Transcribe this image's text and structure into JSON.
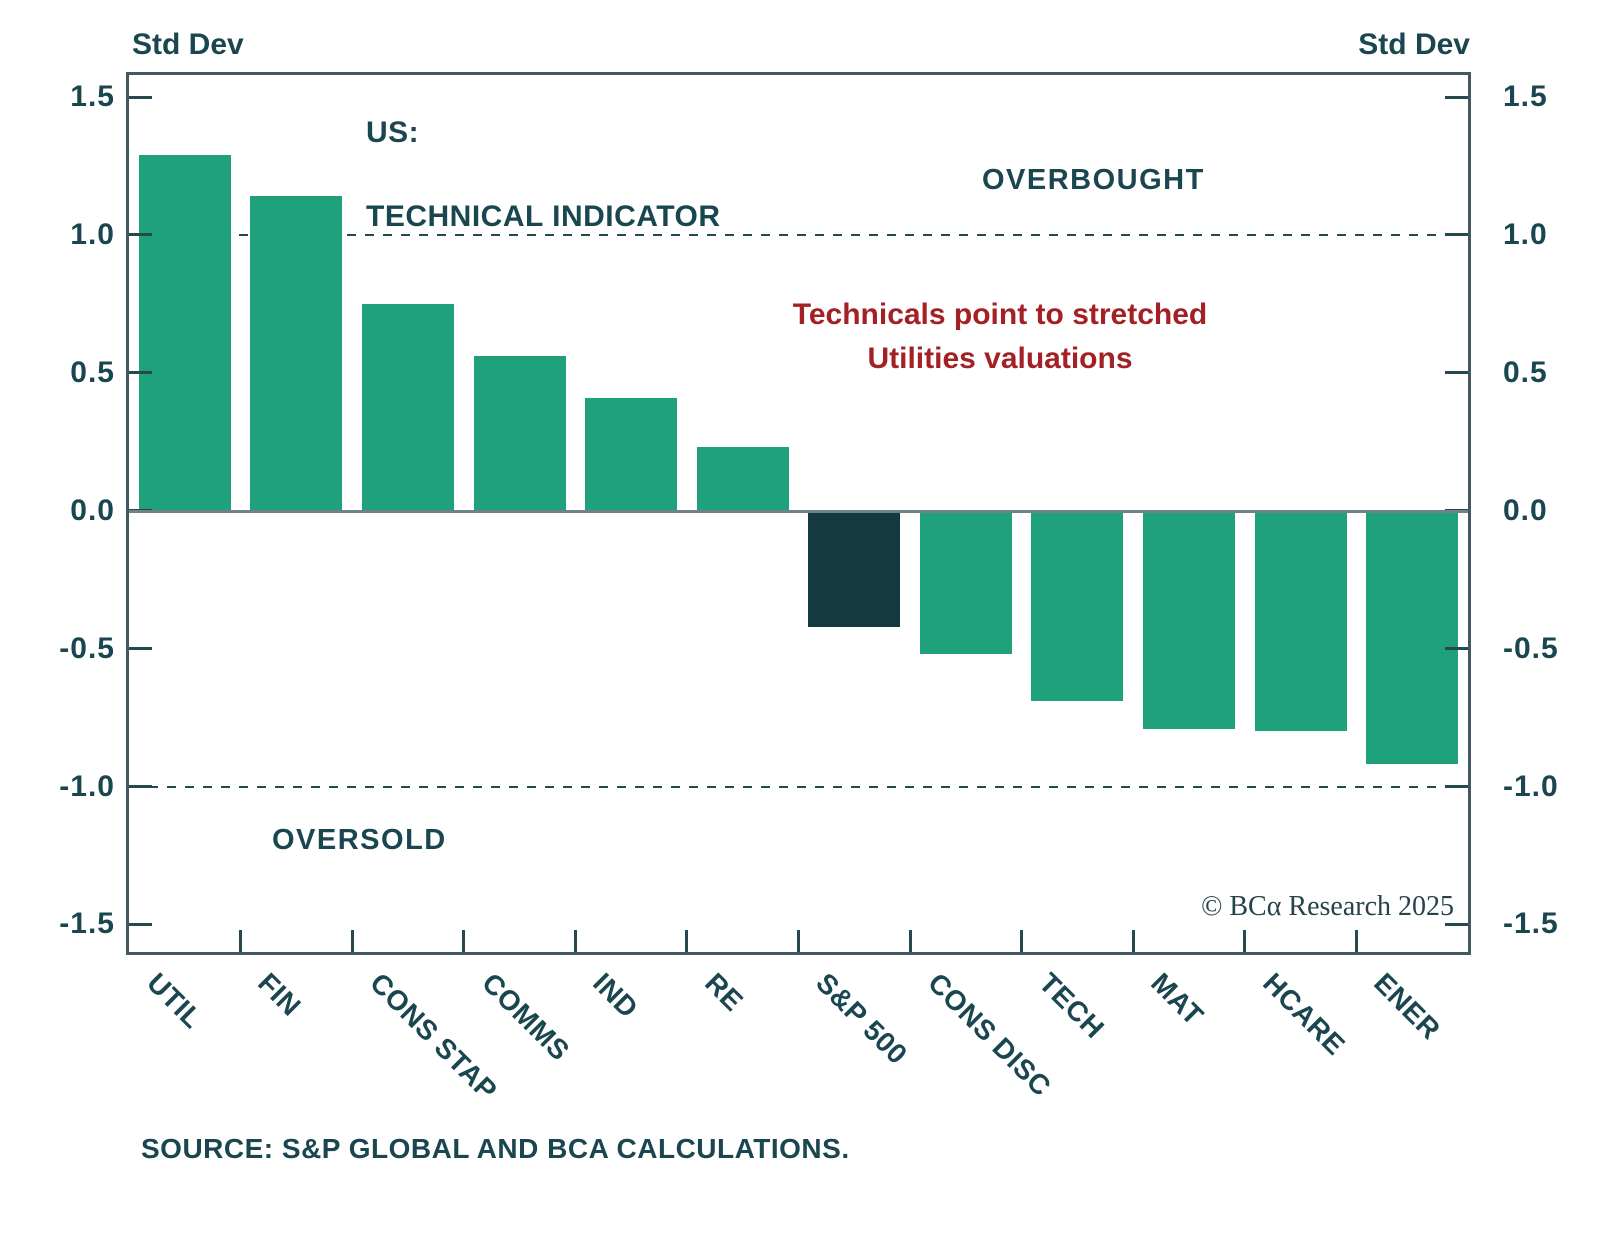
{
  "axis": {
    "left_unit_label": "Std Dev",
    "right_unit_label": "Std Dev"
  },
  "title": {
    "line1": "US:",
    "line2": "TECHNICAL INDICATOR"
  },
  "annotations": {
    "overbought": "OVERBOUGHT",
    "oversold": "OVERSOLD",
    "note_line1": "Technicals point to stretched",
    "note_line2": "Utilities valuations",
    "copyright": "© BCα Research 2025"
  },
  "source": "SOURCE: S&P GLOBAL AND BCA CALCULATIONS.",
  "colors": {
    "bar_green": "#1fa27c",
    "bar_highlight_dark": "#143940",
    "text_teal": "#1a4650",
    "note_red": "#a32025",
    "axis_border": "#44595f",
    "tick": "#26494f",
    "zero_line": "#70818a"
  },
  "chart_data": {
    "type": "bar",
    "title": "US: TECHNICAL INDICATOR",
    "ylabel": "Std Dev",
    "categories": [
      "UTIL",
      "FIN",
      "CONS STAP",
      "COMMS",
      "IND",
      "RE",
      "S&P 500",
      "CONS DISC",
      "TECH",
      "MAT",
      "HCARE",
      "ENER"
    ],
    "values": [
      1.29,
      1.14,
      0.75,
      0.56,
      0.41,
      0.23,
      -0.42,
      -0.52,
      -0.69,
      -0.79,
      -0.8,
      -0.92
    ],
    "highlight_category": "S&P 500",
    "overbought_level": 1.0,
    "oversold_level": -1.0,
    "yticks": [
      1.5,
      1.0,
      0.5,
      0.0,
      -0.5,
      -1.0,
      -1.5
    ],
    "ylim": [
      -1.6,
      1.58
    ],
    "grid": "off",
    "legend_position": "none"
  }
}
